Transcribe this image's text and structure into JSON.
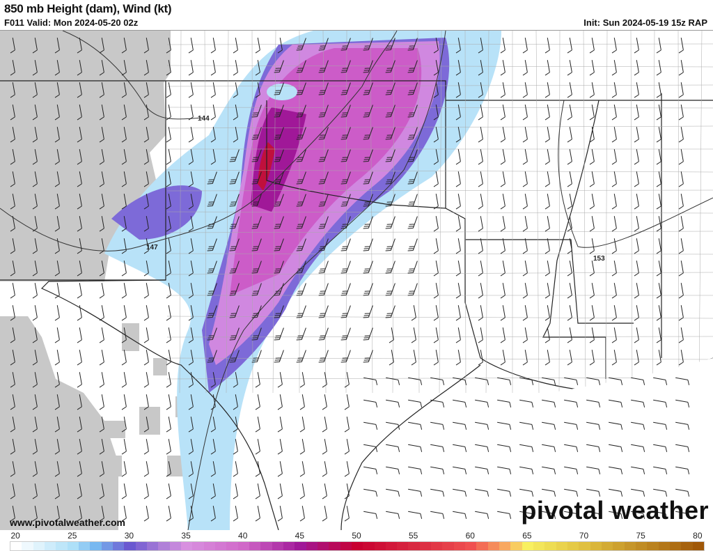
{
  "header": {
    "title": "850 mb Height (dam), Wind (kt)",
    "valid": "F011 Valid: Mon 2024-05-20 02z",
    "init": "Init: Sun 2024-05-19 15z RAP"
  },
  "contours": {
    "labels": [
      "144",
      "147",
      "153"
    ]
  },
  "footer": {
    "website": "www.pivotalweather.com",
    "logo": "pivotal weather"
  },
  "colorbar": {
    "units": "kt",
    "min": 20,
    "max": 80,
    "tick_labels": [
      "20",
      "25",
      "30",
      "35",
      "40",
      "45",
      "50",
      "55",
      "60",
      "65",
      "70",
      "75",
      "80"
    ],
    "stops": [
      [
        20,
        "#ffffff"
      ],
      [
        25,
        "#aee0f8"
      ],
      [
        27,
        "#78b8f0"
      ],
      [
        30,
        "#6a58d0"
      ],
      [
        33,
        "#b080d8"
      ],
      [
        35,
        "#d890e0"
      ],
      [
        40,
        "#d068c8"
      ],
      [
        45,
        "#a01898"
      ],
      [
        50,
        "#c80030"
      ],
      [
        55,
        "#d82840"
      ],
      [
        60,
        "#f05050"
      ],
      [
        63,
        "#f8a860"
      ],
      [
        65,
        "#f8f060"
      ],
      [
        70,
        "#e0c040"
      ],
      [
        80,
        "#a05808"
      ]
    ]
  },
  "colors": {
    "terrain_mask": "#c8c8c8",
    "boundaries": "#222222",
    "counties": "#999999"
  }
}
